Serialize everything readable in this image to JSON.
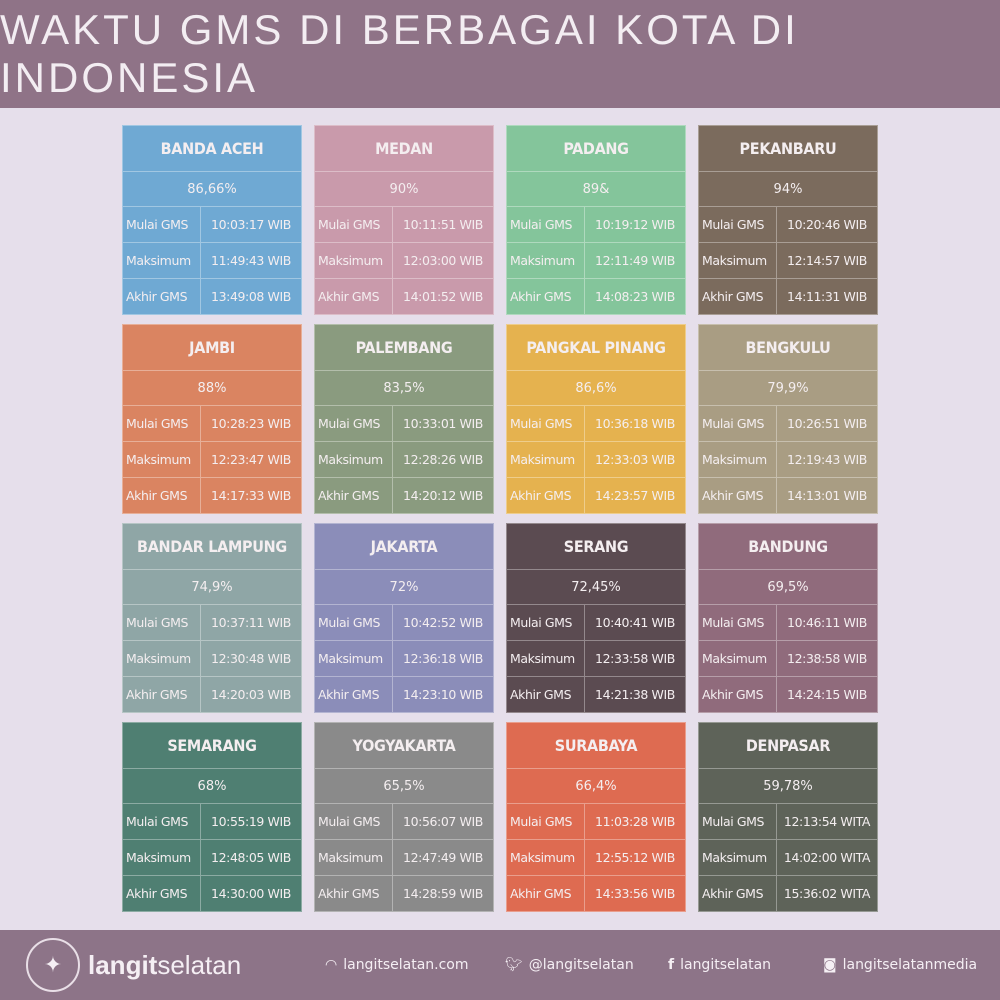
{
  "title": "WAKTU GMS DI BERBAGAI KOTA DI INDONESIA",
  "labels": {
    "start": "Mulai GMS",
    "max": "Maksimum",
    "end": "Akhir GMS"
  },
  "cities": [
    {
      "name": "BANDA ACEH",
      "pct": "86,66%",
      "start": "10:03:17 WIB",
      "max": "11:49:43 WIB",
      "end": "13:49:08 WIB",
      "color": "#6fa9d3"
    },
    {
      "name": "MEDAN",
      "pct": "90%",
      "start": "10:11:51 WIB",
      "max": "12:03:00 WIB",
      "end": "14:01:52 WIB",
      "color": "#c99aab"
    },
    {
      "name": "PADANG",
      "pct": "89&",
      "start": "10:19:12 WIB",
      "max": "12:11:49 WIB",
      "end": "14:08:23 WIB",
      "color": "#84c59b"
    },
    {
      "name": "PEKANBARU",
      "pct": "94%",
      "start": "10:20:46 WIB",
      "max": "12:14:57 WIB",
      "end": "14:11:31 WIB",
      "color": "#7b6b5d"
    },
    {
      "name": "JAMBI",
      "pct": "88%",
      "start": "10:28:23 WIB",
      "max": "12:23:47 WIB",
      "end": "14:17:33 WIB",
      "color": "#da8461"
    },
    {
      "name": "PALEMBANG",
      "pct": "83,5%",
      "start": "10:33:01 WIB",
      "max": "12:28:26 WIB",
      "end": "14:20:12 WIB",
      "color": "#8a9b7f"
    },
    {
      "name": "PANGKAL PINANG",
      "pct": "86,6%",
      "start": "10:36:18 WIB",
      "max": "12:33:03 WIB",
      "end": "14:23:57 WIB",
      "color": "#e5b24f"
    },
    {
      "name": "BENGKULU",
      "pct": "79,9%",
      "start": "10:26:51 WIB",
      "max": "12:19:43 WIB",
      "end": "14:13:01 WIB",
      "color": "#a99d83"
    },
    {
      "name": "BANDAR LAMPUNG",
      "pct": "74,9%",
      "start": "10:37:11 WIB",
      "max": "12:30:48 WIB",
      "end": "14:20:03 WIB",
      "color": "#8fa6a6"
    },
    {
      "name": "JAKARTA",
      "pct": "72%",
      "start": "10:42:52 WIB",
      "max": "12:36:18 WIB",
      "end": "14:23:10 WIB",
      "color": "#8b8db9"
    },
    {
      "name": "SERANG",
      "pct": "72,45%",
      "start": "10:40:41 WIB",
      "max": "12:33:58 WIB",
      "end": "14:21:38 WIB",
      "color": "#5b4b51"
    },
    {
      "name": "BANDUNG",
      "pct": "69,5%",
      "start": "10:46:11 WIB",
      "max": "12:38:58 WIB",
      "end": "14:24:15 WIB",
      "color": "#906b7c"
    },
    {
      "name": "SEMARANG",
      "pct": "68%",
      "start": "10:55:19 WIB",
      "max": "12:48:05 WIB",
      "end": "14:30:00 WIB",
      "color": "#4f7f72"
    },
    {
      "name": "YOGYAKARTA",
      "pct": "65,5%",
      "start": "10:56:07 WIB",
      "max": "12:47:49 WIB",
      "end": "14:28:59 WIB",
      "color": "#8a8a8a"
    },
    {
      "name": "SURABAYA",
      "pct": "66,4%",
      "start": "11:03:28 WIB",
      "max": "12:55:12 WIB",
      "end": "14:33:56 WIB",
      "color": "#de6b51"
    },
    {
      "name": "DENPASAR",
      "pct": "59,78%",
      "start": "12:13:54 WITA",
      "max": "14:02:00 WITA",
      "end": "15:36:02 WITA",
      "color": "#5e6359"
    }
  ],
  "footer": {
    "brand_bold": "langit",
    "brand_light": "selatan",
    "web": "langitselatan.com",
    "twitter": "@langitselatan",
    "facebook": "langitselatan",
    "instagram": "langitselatanmedia",
    "logo_text": "LANGITSELATAN"
  }
}
